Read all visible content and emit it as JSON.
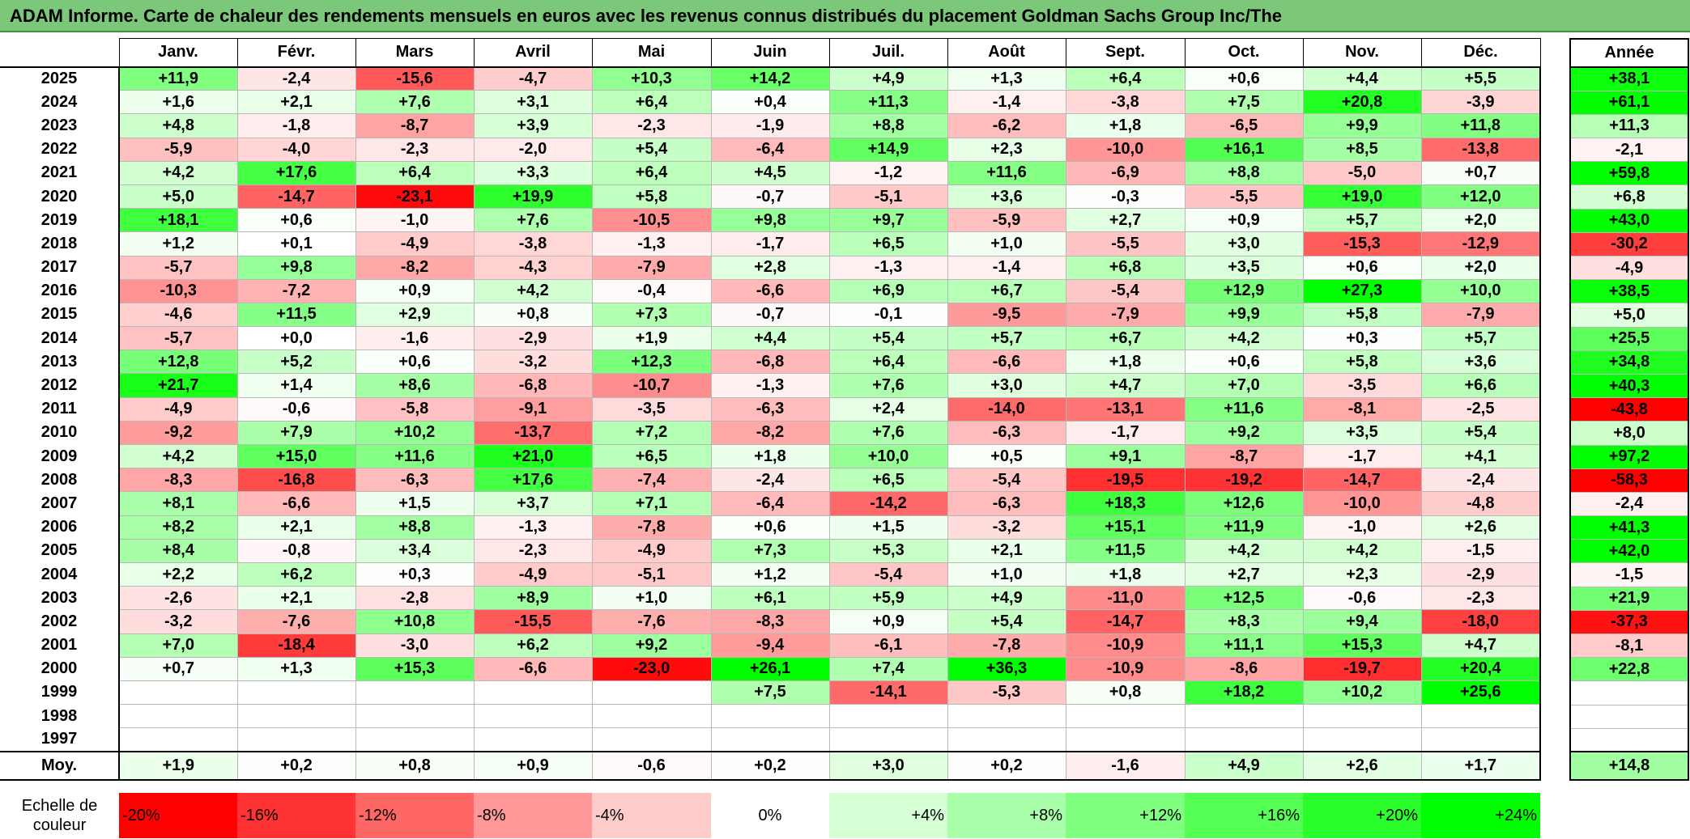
{
  "title": "ADAM Informe. Carte de chaleur des rendements mensuels en euros avec les revenus connus distribués du placement Goldman Sachs Group Inc/The",
  "chart_data": {
    "type": "heatmap",
    "title": "ADAM Informe. Carte de chaleur des rendements mensuels en euros avec les revenus connus distribués du placement Goldman Sachs Group Inc/The",
    "columns": [
      "Janv.",
      "Févr.",
      "Mars",
      "Avril",
      "Mai",
      "Juin",
      "Juil.",
      "Août",
      "Sept.",
      "Oct.",
      "Nov.",
      "Déc."
    ],
    "year_header": "Année",
    "rows": [
      {
        "year": "2025",
        "values": [
          "+11,9",
          "-2,4",
          "-15,6",
          "-4,7",
          "+10,3",
          "+14,2",
          "+4,9",
          "+1,3",
          "+6,4",
          "+0,6",
          "+4,4",
          "+5,5"
        ],
        "annual": "+38,1"
      },
      {
        "year": "2024",
        "values": [
          "+1,6",
          "+2,1",
          "+7,6",
          "+3,1",
          "+6,4",
          "+0,4",
          "+11,3",
          "-1,4",
          "-3,8",
          "+7,5",
          "+20,8",
          "-3,9"
        ],
        "annual": "+61,1"
      },
      {
        "year": "2023",
        "values": [
          "+4,8",
          "-1,8",
          "-8,7",
          "+3,9",
          "-2,3",
          "-1,9",
          "+8,8",
          "-6,2",
          "+1,8",
          "-6,5",
          "+9,9",
          "+11,8"
        ],
        "annual": "+11,3"
      },
      {
        "year": "2022",
        "values": [
          "-5,9",
          "-4,0",
          "-2,3",
          "-2,0",
          "+5,4",
          "-6,4",
          "+14,9",
          "+2,3",
          "-10,0",
          "+16,1",
          "+8,5",
          "-13,8"
        ],
        "annual": "-2,1"
      },
      {
        "year": "2021",
        "values": [
          "+4,2",
          "+17,6",
          "+6,4",
          "+3,3",
          "+6,4",
          "+4,5",
          "-1,2",
          "+11,6",
          "-6,9",
          "+8,8",
          "-5,0",
          "+0,7"
        ],
        "annual": "+59,8"
      },
      {
        "year": "2020",
        "values": [
          "+5,0",
          "-14,7",
          "-23,1",
          "+19,9",
          "+5,8",
          "-0,7",
          "-5,1",
          "+3,6",
          "-0,3",
          "-5,5",
          "+19,0",
          "+12,0"
        ],
        "annual": "+6,8"
      },
      {
        "year": "2019",
        "values": [
          "+18,1",
          "+0,6",
          "-1,0",
          "+7,6",
          "-10,5",
          "+9,8",
          "+9,7",
          "-5,9",
          "+2,7",
          "+0,9",
          "+5,7",
          "+2,0"
        ],
        "annual": "+43,0"
      },
      {
        "year": "2018",
        "values": [
          "+1,2",
          "+0,1",
          "-4,9",
          "-3,8",
          "-1,3",
          "-1,7",
          "+6,5",
          "+1,0",
          "-5,5",
          "+3,0",
          "-15,3",
          "-12,9"
        ],
        "annual": "-30,2"
      },
      {
        "year": "2017",
        "values": [
          "-5,7",
          "+9,8",
          "-8,2",
          "-4,3",
          "-7,9",
          "+2,8",
          "-1,3",
          "-1,4",
          "+6,8",
          "+3,5",
          "+0,6",
          "+2,0"
        ],
        "annual": "-4,9"
      },
      {
        "year": "2016",
        "values": [
          "-10,3",
          "-7,2",
          "+0,9",
          "+4,2",
          "-0,4",
          "-6,6",
          "+6,9",
          "+6,7",
          "-5,4",
          "+12,9",
          "+27,3",
          "+10,0"
        ],
        "annual": "+38,5"
      },
      {
        "year": "2015",
        "values": [
          "-4,6",
          "+11,5",
          "+2,9",
          "+0,8",
          "+7,3",
          "-0,7",
          "-0,1",
          "-9,5",
          "-7,9",
          "+9,9",
          "+5,8",
          "-7,9"
        ],
        "annual": "+5,0"
      },
      {
        "year": "2014",
        "values": [
          "-5,7",
          "+0,0",
          "-1,6",
          "-2,9",
          "+1,9",
          "+4,4",
          "+5,4",
          "+5,7",
          "+6,7",
          "+4,2",
          "+0,3",
          "+5,7"
        ],
        "annual": "+25,5"
      },
      {
        "year": "2013",
        "values": [
          "+12,8",
          "+5,2",
          "+0,6",
          "-3,2",
          "+12,3",
          "-6,8",
          "+6,4",
          "-6,6",
          "+1,8",
          "+0,6",
          "+5,8",
          "+3,6"
        ],
        "annual": "+34,8"
      },
      {
        "year": "2012",
        "values": [
          "+21,7",
          "+1,4",
          "+8,6",
          "-6,8",
          "-10,7",
          "-1,3",
          "+7,6",
          "+3,0",
          "+4,7",
          "+7,0",
          "-3,5",
          "+6,6"
        ],
        "annual": "+40,3"
      },
      {
        "year": "2011",
        "values": [
          "-4,9",
          "-0,6",
          "-5,8",
          "-9,1",
          "-3,5",
          "-6,3",
          "+2,4",
          "-14,0",
          "-13,1",
          "+11,6",
          "-8,1",
          "-2,5"
        ],
        "annual": "-43,8"
      },
      {
        "year": "2010",
        "values": [
          "-9,2",
          "+7,9",
          "+10,2",
          "-13,7",
          "+7,2",
          "-8,2",
          "+7,6",
          "-6,3",
          "-1,7",
          "+9,2",
          "+3,5",
          "+5,4"
        ],
        "annual": "+8,0"
      },
      {
        "year": "2009",
        "values": [
          "+4,2",
          "+15,0",
          "+11,6",
          "+21,0",
          "+6,5",
          "+1,8",
          "+10,0",
          "+0,5",
          "+9,1",
          "-8,7",
          "-1,7",
          "+4,1"
        ],
        "annual": "+97,2"
      },
      {
        "year": "2008",
        "values": [
          "-8,3",
          "-16,8",
          "-6,3",
          "+17,6",
          "-7,4",
          "-2,4",
          "+6,5",
          "-5,4",
          "-19,5",
          "-19,2",
          "-14,7",
          "-2,4"
        ],
        "annual": "-58,3"
      },
      {
        "year": "2007",
        "values": [
          "+8,1",
          "-6,6",
          "+1,5",
          "+3,7",
          "+7,1",
          "-6,4",
          "-14,2",
          "-6,3",
          "+18,3",
          "+12,6",
          "-10,0",
          "-4,8"
        ],
        "annual": "-2,4"
      },
      {
        "year": "2006",
        "values": [
          "+8,2",
          "+2,1",
          "+8,8",
          "-1,3",
          "-7,8",
          "+0,6",
          "+1,5",
          "-3,2",
          "+15,1",
          "+11,9",
          "-1,0",
          "+2,6"
        ],
        "annual": "+41,3"
      },
      {
        "year": "2005",
        "values": [
          "+8,4",
          "-0,8",
          "+3,4",
          "-2,3",
          "-4,9",
          "+7,3",
          "+5,3",
          "+2,1",
          "+11,5",
          "+4,2",
          "+4,2",
          "-1,5"
        ],
        "annual": "+42,0"
      },
      {
        "year": "2004",
        "values": [
          "+2,2",
          "+6,2",
          "+0,3",
          "-4,9",
          "-5,1",
          "+1,2",
          "-5,4",
          "+1,0",
          "+1,8",
          "+2,7",
          "+2,3",
          "-2,9"
        ],
        "annual": "-1,5"
      },
      {
        "year": "2003",
        "values": [
          "-2,6",
          "+2,1",
          "-2,8",
          "+8,9",
          "+1,0",
          "+6,1",
          "+5,9",
          "+4,9",
          "-11,0",
          "+12,5",
          "-0,6",
          "-2,3"
        ],
        "annual": "+21,9"
      },
      {
        "year": "2002",
        "values": [
          "-3,2",
          "-7,6",
          "+10,8",
          "-15,5",
          "-7,6",
          "-8,3",
          "+0,9",
          "+5,4",
          "-14,7",
          "+8,3",
          "+9,4",
          "-18,0"
        ],
        "annual": "-37,3"
      },
      {
        "year": "2001",
        "values": [
          "+7,0",
          "-18,4",
          "-3,0",
          "+6,2",
          "+9,2",
          "-9,4",
          "-6,1",
          "-7,8",
          "-10,9",
          "+11,1",
          "+15,3",
          "+4,7"
        ],
        "annual": "-8,1"
      },
      {
        "year": "2000",
        "values": [
          "+0,7",
          "+1,3",
          "+15,3",
          "-6,6",
          "-23,0",
          "+26,1",
          "+7,4",
          "+36,3",
          "-10,9",
          "-8,6",
          "-19,7",
          "+20,4"
        ],
        "annual": "+22,8"
      },
      {
        "year": "1999",
        "values": [
          "",
          "",
          "",
          "",
          "",
          "+7,5",
          "-14,1",
          "-5,3",
          "+0,8",
          "+18,2",
          "+10,2",
          "+25,6"
        ],
        "annual": ""
      },
      {
        "year": "1998",
        "values": [
          "",
          "",
          "",
          "",
          "",
          "",
          "",
          "",
          "",
          "",
          "",
          ""
        ],
        "annual": ""
      },
      {
        "year": "1997",
        "values": [
          "",
          "",
          "",
          "",
          "",
          "",
          "",
          "",
          "",
          "",
          "",
          ""
        ],
        "annual": ""
      }
    ],
    "average": {
      "label": "Moy.",
      "values": [
        "+1,9",
        "+0,2",
        "+0,8",
        "+0,9",
        "-0,6",
        "+0,2",
        "+3,0",
        "+0,2",
        "-1,6",
        "+4,9",
        "+2,6",
        "+1,7"
      ],
      "annual": "+14,8"
    },
    "color_scale": {
      "label": "Echelle de couleur",
      "steps": [
        "-20%",
        "-16%",
        "-12%",
        "-8%",
        "-4%",
        "0%",
        "+4%",
        "+8%",
        "+12%",
        "+16%",
        "+20%",
        "+24%"
      ],
      "negative_color": "#ff0000",
      "zero_color": "#ffffff",
      "positive_color": "#00ff00"
    }
  }
}
